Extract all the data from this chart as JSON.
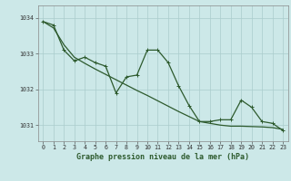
{
  "title": "Graphe pression niveau de la mer (hPa)",
  "background_color": "#cce8e8",
  "plot_bg_color": "#cce8e8",
  "grid_color": "#aacccc",
  "line_color": "#2d5a2d",
  "x_labels": [
    "0",
    "1",
    "2",
    "3",
    "4",
    "5",
    "6",
    "7",
    "8",
    "9",
    "10",
    "11",
    "12",
    "13",
    "14",
    "15",
    "16",
    "17",
    "18",
    "19",
    "20",
    "21",
    "22",
    "23"
  ],
  "y_ticks": [
    1031,
    1032,
    1033,
    1034
  ],
  "ylim": [
    1030.55,
    1034.35
  ],
  "xlim": [
    -0.5,
    23.5
  ],
  "hourly_data": [
    1033.9,
    1033.8,
    1033.1,
    1032.8,
    1032.9,
    1032.75,
    1032.65,
    1031.9,
    1032.35,
    1032.4,
    1033.1,
    1033.1,
    1032.75,
    1032.1,
    1031.55,
    1031.1,
    1031.1,
    1031.15,
    1031.15,
    1031.7,
    1031.5,
    1031.1,
    1031.05,
    1030.85
  ],
  "trend_data": [
    1033.9,
    1033.72,
    1033.25,
    1032.9,
    1032.73,
    1032.57,
    1032.42,
    1032.27,
    1032.12,
    1031.97,
    1031.83,
    1031.68,
    1031.53,
    1031.38,
    1031.24,
    1031.1,
    1031.05,
    1031.0,
    1030.97,
    1030.97,
    1030.96,
    1030.95,
    1030.93,
    1030.88
  ],
  "tick_fontsize": 4.8,
  "title_fontsize": 6.0,
  "line_width": 0.9,
  "marker_size": 3.0
}
